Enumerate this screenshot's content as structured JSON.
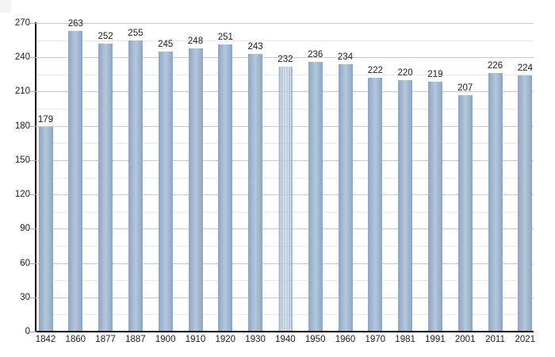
{
  "chart_data": {
    "type": "bar",
    "title": "",
    "xlabel": "",
    "ylabel": "",
    "categories": [
      "1842",
      "1860",
      "1877",
      "1887",
      "1900",
      "1910",
      "1920",
      "1930",
      "1940",
      "1950",
      "1960",
      "1970",
      "1981",
      "1991",
      "2001",
      "2011",
      "2021"
    ],
    "values": [
      179,
      263,
      252,
      255,
      245,
      248,
      251,
      243,
      232,
      236,
      234,
      222,
      220,
      219,
      207,
      226,
      224
    ],
    "value_labels": [
      "179",
      "263",
      "252",
      "255",
      "245",
      "248",
      "251",
      "243",
      "232",
      "236",
      "234",
      "222",
      "220",
      "219",
      "207",
      "226",
      "224"
    ],
    "estimated_categories": [
      "1940"
    ],
    "ylim": [
      0,
      270
    ],
    "ytick_major_step": 30,
    "ytick_minor_step": 15,
    "y_tick_labels": [
      "0",
      "30",
      "60",
      "90",
      "120",
      "150",
      "180",
      "210",
      "240",
      "270"
    ],
    "grid": "on",
    "legend": "none",
    "colors": {
      "background": "#ffffff",
      "bar_edge": "#8ca5c4",
      "bar_center": "#b2c5da",
      "estimate_stripe": "rgba(255,255,255,0.55)",
      "grid_major": "#c8c8c8",
      "grid_minor": "#eaeaea",
      "axis": "#000000",
      "tick": "#a9a9a9",
      "label_text": "#1c1c1c"
    }
  }
}
